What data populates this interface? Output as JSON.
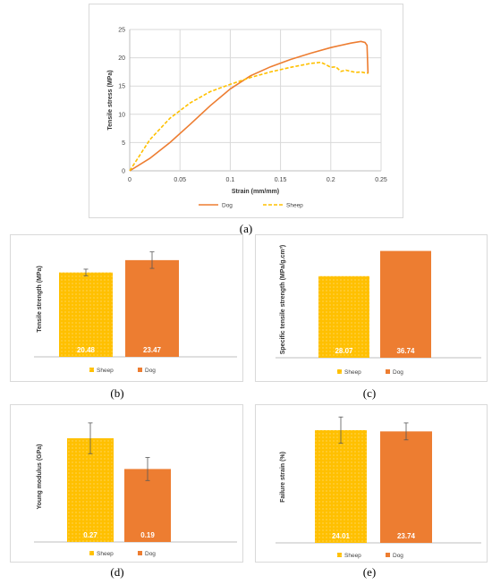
{
  "colors": {
    "sheep": "#FFC000",
    "dog": "#ED7D31",
    "sheep_dot": "#ffe08a"
  },
  "chart_data": [
    {
      "id": "a",
      "type": "line",
      "xlabel": "Strain (mm/mm)",
      "ylabel": "Tensile stress (MPa)",
      "xlim": [
        0,
        0.25
      ],
      "ylim": [
        0,
        25
      ],
      "xticks": [
        "0",
        "0.05",
        "0.1",
        "0.15",
        "0.2",
        "0.25"
      ],
      "yticks": [
        "0",
        "5",
        "10",
        "15",
        "20",
        "25"
      ],
      "grid": true,
      "legend": "bottom",
      "series": [
        {
          "name": "Dog",
          "style": "solid",
          "x": [
            0,
            0.02,
            0.04,
            0.06,
            0.08,
            0.1,
            0.12,
            0.14,
            0.16,
            0.18,
            0.2,
            0.22,
            0.23,
            0.234,
            0.236,
            0.237
          ],
          "y": [
            0,
            2.2,
            5.0,
            8.2,
            11.5,
            14.5,
            16.8,
            18.4,
            19.7,
            20.8,
            21.8,
            22.6,
            22.9,
            22.7,
            22.2,
            17.2
          ]
        },
        {
          "name": "Sheep",
          "style": "dashed",
          "x": [
            0,
            0.02,
            0.04,
            0.06,
            0.08,
            0.1,
            0.12,
            0.14,
            0.16,
            0.18,
            0.19,
            0.195,
            0.2,
            0.205,
            0.21,
            0.215,
            0.22,
            0.225,
            0.23,
            0.235,
            0.237
          ],
          "y": [
            0,
            5.5,
            9.3,
            12.0,
            14.0,
            15.3,
            16.5,
            17.5,
            18.3,
            19.0,
            19.2,
            18.8,
            18.3,
            18.4,
            17.6,
            17.8,
            17.6,
            17.4,
            17.5,
            17.3,
            17.3
          ]
        }
      ],
      "caption": "(a)"
    },
    {
      "id": "b",
      "type": "bar",
      "ylabel": "Tensile strength (MPa)",
      "categories": [
        "Sheep",
        "Dog"
      ],
      "values": [
        20.48,
        23.47
      ],
      "value_labels": [
        "20.48",
        "23.47"
      ],
      "errors": [
        0.8,
        2.0
      ],
      "ymax": 28,
      "legend": "bottom",
      "caption": "(b)"
    },
    {
      "id": "c",
      "type": "bar",
      "ylabel": "Specific tensile strength (MPa/g.cm³)",
      "categories": [
        "Sheep",
        "Dog"
      ],
      "values": [
        28.07,
        36.74
      ],
      "value_labels": [
        "28.07",
        "36.74"
      ],
      "errors": [
        0,
        0
      ],
      "ymax": 40,
      "legend": "bottom",
      "caption": "(c)"
    },
    {
      "id": "d",
      "type": "bar",
      "ylabel": "Young modulus (GPa)",
      "categories": [
        "Sheep",
        "Dog"
      ],
      "values": [
        0.27,
        0.19
      ],
      "value_labels": [
        "0.27",
        "0.19"
      ],
      "errors": [
        0.04,
        0.03
      ],
      "ymax": 0.34,
      "legend": "bottom",
      "caption": "(d)"
    },
    {
      "id": "e",
      "type": "bar",
      "ylabel": "Failure strain (%)",
      "categories": [
        "Sheep",
        "Dog"
      ],
      "values": [
        24.01,
        23.74
      ],
      "value_labels": [
        "24.01",
        "23.74"
      ],
      "errors": [
        2.8,
        1.8
      ],
      "ymax": 28,
      "legend": "bottom",
      "caption": "(e)"
    }
  ]
}
